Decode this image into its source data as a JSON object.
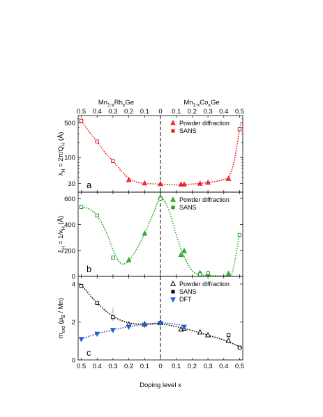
{
  "chart_data": [
    {
      "type": "scatter",
      "panel_label": "a",
      "ylabel": "λ_H = 2π/Q_H (Å)",
      "yscale": "log",
      "ylim": [
        20,
        700
      ],
      "yticks": [
        30,
        100,
        500
      ],
      "legend": {
        "position": "top-right"
      },
      "series": [
        {
          "name": "Powder diffraction",
          "marker": "triangle-up",
          "color": "#e8141c",
          "points": [
            [
              -0.2,
              35
            ],
            [
              -0.1,
              30
            ],
            [
              0,
              29
            ],
            [
              0.13,
              28.5
            ],
            [
              0.15,
              28.5
            ],
            [
              0.25,
              29.5
            ],
            [
              0.3,
              31
            ],
            [
              0.43,
              37
            ]
          ]
        },
        {
          "name": "SANS",
          "marker": "square",
          "color": "#e8141c",
          "points": [
            [
              -0.5,
              550
            ],
            [
              -0.4,
              210
            ],
            [
              -0.3,
              85
            ],
            [
              0.5,
              370
            ]
          ]
        }
      ],
      "fit_line": {
        "color": "#e8141c",
        "points": [
          [
            -0.5,
            550
          ],
          [
            -0.45,
            330
          ],
          [
            -0.4,
            210
          ],
          [
            -0.35,
            125
          ],
          [
            -0.3,
            85
          ],
          [
            -0.25,
            55
          ],
          [
            -0.2,
            38
          ],
          [
            -0.15,
            32
          ],
          [
            -0.1,
            30
          ],
          [
            0,
            29
          ],
          [
            0.1,
            28
          ],
          [
            0.15,
            28.3
          ],
          [
            0.25,
            30
          ],
          [
            0.35,
            33
          ],
          [
            0.4,
            36
          ],
          [
            0.43,
            40
          ],
          [
            0.46,
            70
          ],
          [
            0.48,
            150
          ],
          [
            0.5,
            370
          ],
          [
            0.51,
            500
          ]
        ]
      }
    },
    {
      "type": "scatter",
      "panel_label": "b",
      "ylabel": "ξ_H = 1/κ_H (Å)",
      "ylim": [
        0,
        650
      ],
      "yticks": [
        0,
        200,
        400,
        600
      ],
      "legend": {
        "position": "top-right"
      },
      "series": [
        {
          "name": "Powder diffraction",
          "marker": "triangle-up",
          "color": "#1aa31a",
          "points": [
            [
              -0.2,
              125
            ],
            [
              -0.1,
              330
            ],
            [
              0,
              610
            ],
            [
              0.13,
              165
            ],
            [
              0.15,
              195
            ],
            [
              0.25,
              25
            ],
            [
              0.3,
              20
            ],
            [
              0.43,
              20
            ]
          ]
        },
        {
          "name": "SANS",
          "marker": "square",
          "color": "#1aa31a",
          "points": [
            [
              -0.5,
              535
            ],
            [
              -0.4,
              470
            ],
            [
              -0.3,
              145
            ],
            [
              0,
              600
            ],
            [
              0.25,
              15
            ],
            [
              0.3,
              25
            ],
            [
              0.5,
              320
            ]
          ]
        }
      ],
      "fit_line": {
        "color": "#1aa31a",
        "points": [
          [
            -0.5,
            535
          ],
          [
            -0.45,
            520
          ],
          [
            -0.4,
            470
          ],
          [
            -0.35,
            360
          ],
          [
            -0.3,
            210
          ],
          [
            -0.27,
            130
          ],
          [
            -0.24,
            95
          ],
          [
            -0.2,
            120
          ],
          [
            -0.15,
            210
          ],
          [
            -0.1,
            330
          ],
          [
            -0.05,
            470
          ],
          [
            0,
            600
          ],
          [
            0.05,
            520
          ],
          [
            0.1,
            320
          ],
          [
            0.15,
            150
          ],
          [
            0.2,
            45
          ],
          [
            0.25,
            12
          ],
          [
            0.3,
            8
          ],
          [
            0.43,
            8
          ],
          [
            0.46,
            60
          ],
          [
            0.5,
            330
          ]
        ]
      }
    },
    {
      "type": "scatter",
      "panel_label": "c",
      "ylabel": "m_ord (μ_B / Mn)",
      "ylim": [
        0,
        4.4
      ],
      "yticks": [
        0,
        2,
        4
      ],
      "xlabel": "Doping level x",
      "legend": {
        "position": "top-right"
      },
      "series": [
        {
          "name": "Powder diffraction",
          "marker": "triangle-up-open",
          "color": "#000000",
          "points": [
            [
              -0.2,
              1.87
            ],
            [
              -0.1,
              1.87
            ],
            [
              0,
              1.95
            ],
            [
              0.13,
              1.6
            ],
            [
              0.15,
              1.65
            ],
            [
              0.25,
              1.45
            ],
            [
              0.3,
              1.3
            ],
            [
              0.43,
              1.0
            ]
          ]
        },
        {
          "name": "SANS",
          "marker": "square",
          "color": "#000000",
          "points": [
            [
              -0.5,
              3.9
            ],
            [
              -0.4,
              3.0
            ],
            [
              -0.3,
              2.25
            ],
            [
              0.43,
              1.3
            ],
            [
              0.5,
              0.65
            ]
          ]
        },
        {
          "name": "DFT",
          "marker": "triangle-down",
          "color": "#1f5fd6",
          "points": [
            [
              -0.5,
              1.1
            ],
            [
              -0.4,
              1.38
            ],
            [
              -0.3,
              1.58
            ],
            [
              -0.2,
              1.75
            ],
            [
              -0.1,
              1.85
            ],
            [
              0,
              1.95
            ],
            [
              0.15,
              1.75
            ]
          ]
        }
      ],
      "fit_lines": [
        {
          "color": "#000000",
          "points": [
            [
              -0.5,
              3.95
            ],
            [
              -0.4,
              3.0
            ],
            [
              -0.3,
              2.3
            ],
            [
              -0.2,
              1.95
            ],
            [
              -0.1,
              1.88
            ],
            [
              0,
              1.9
            ],
            [
              0.1,
              1.75
            ],
            [
              0.2,
              1.55
            ],
            [
              0.3,
              1.3
            ],
            [
              0.4,
              1.05
            ],
            [
              0.5,
              0.7
            ],
            [
              0.52,
              0.62
            ]
          ]
        },
        {
          "color": "#1f5fd6",
          "points": [
            [
              -0.5,
              1.1
            ],
            [
              -0.4,
              1.38
            ],
            [
              -0.3,
              1.58
            ],
            [
              -0.2,
              1.75
            ],
            [
              -0.1,
              1.87
            ],
            [
              0,
              1.95
            ],
            [
              0.1,
              1.88
            ],
            [
              0.15,
              1.78
            ]
          ]
        }
      ]
    }
  ],
  "axes": {
    "left_top_label": "Mn1-xRhxGe",
    "right_top_label": "Mn1-xCoxGe",
    "xticks": [
      -0.5,
      -0.4,
      -0.3,
      -0.2,
      -0.1,
      0,
      0.1,
      0.2,
      0.3,
      0.4,
      0.5
    ],
    "xtick_labels": [
      "0.5",
      "0.4",
      "0.3",
      "0.2",
      "0.1",
      "0",
      "0.1",
      "0.2",
      "0.3",
      "0.4",
      "0.5"
    ]
  }
}
